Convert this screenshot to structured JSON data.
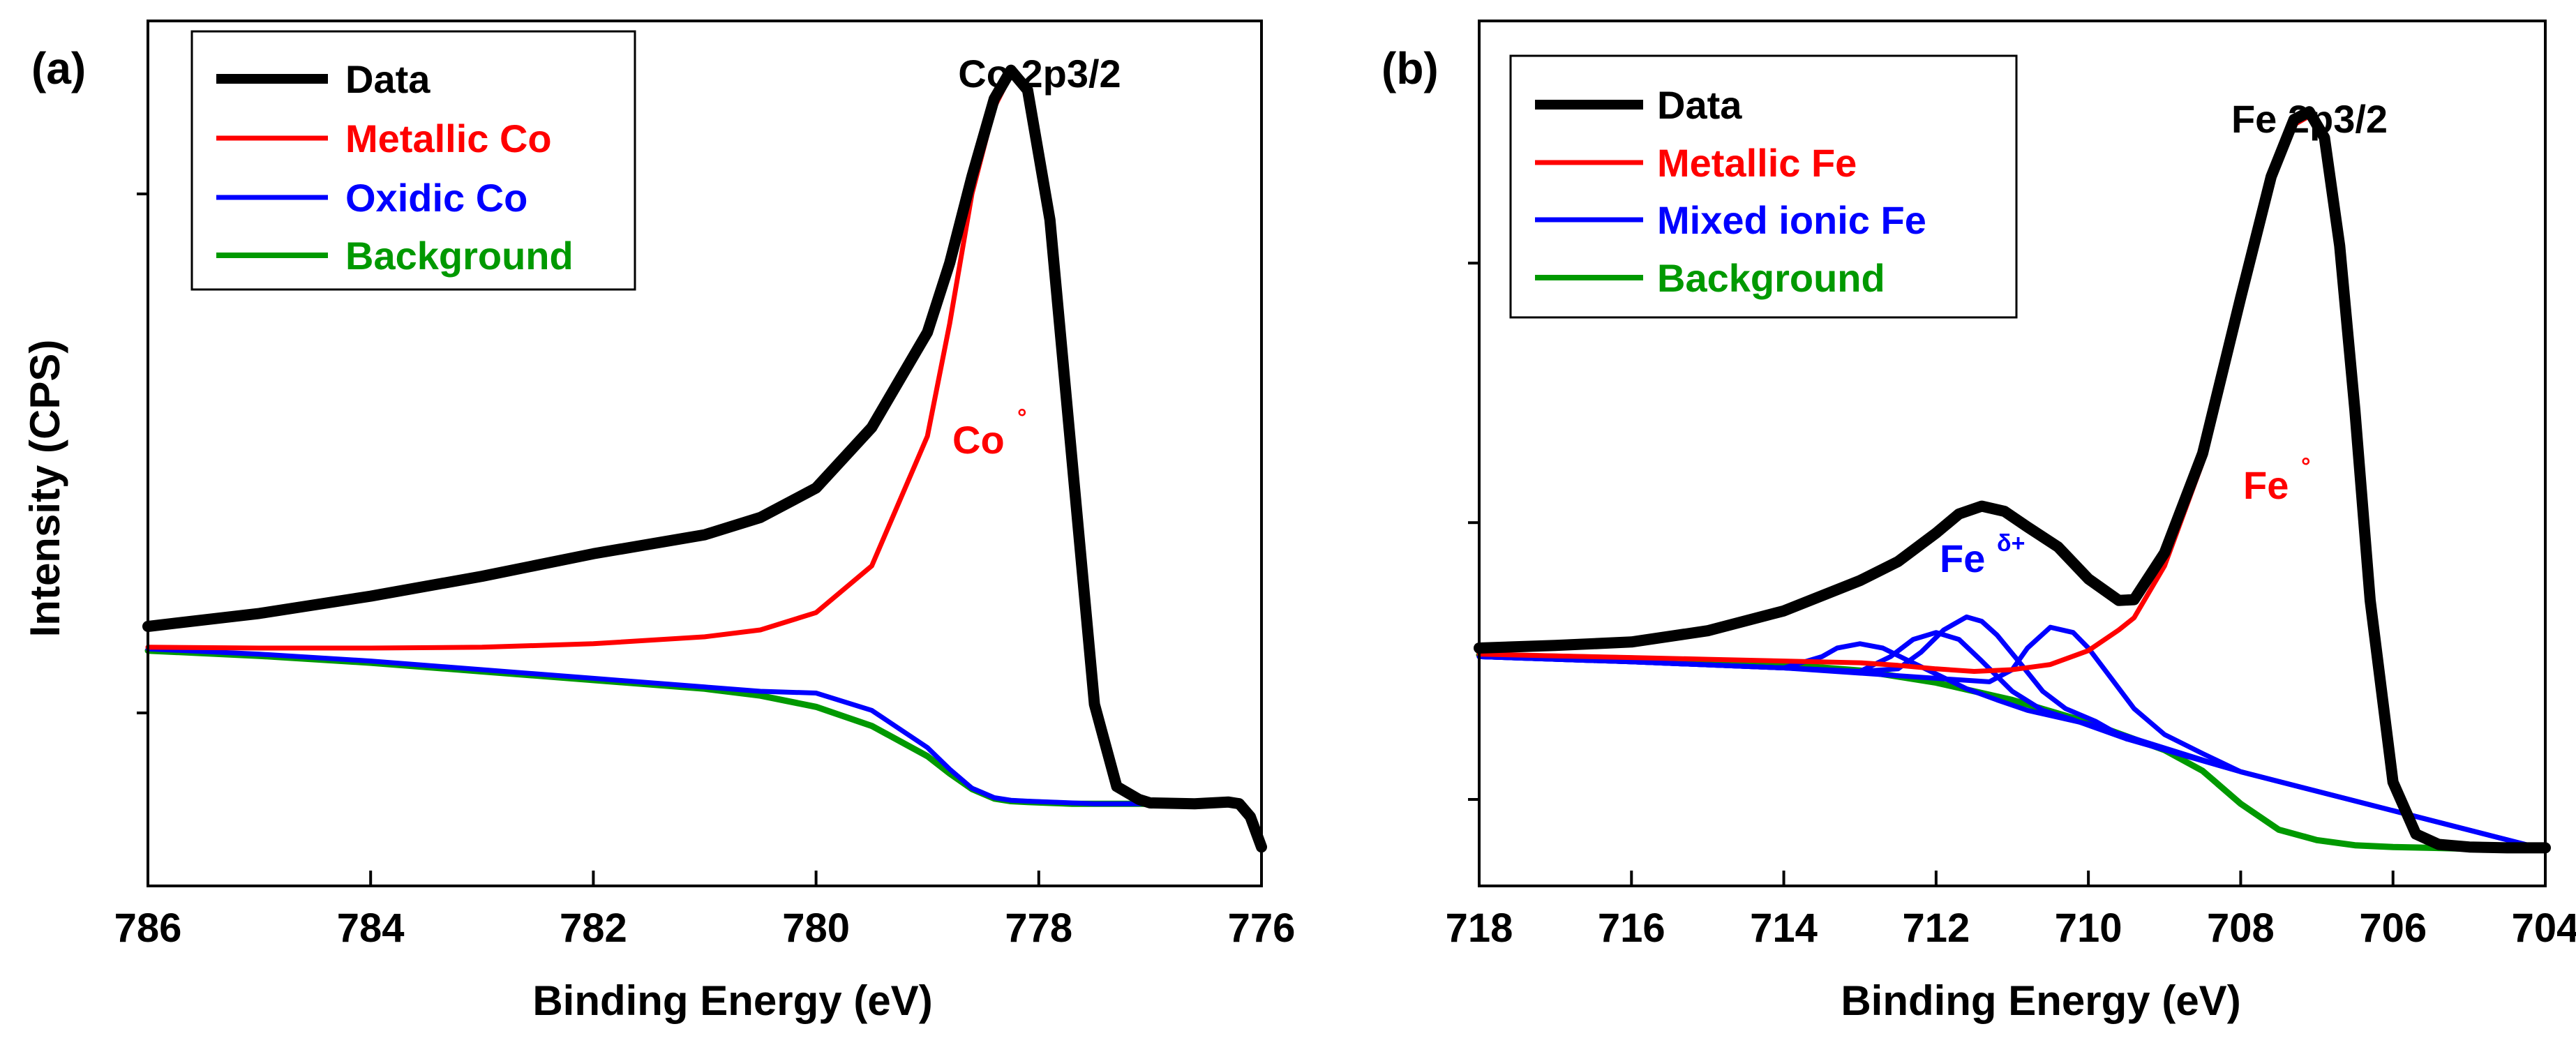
{
  "chart_data": [
    {
      "type": "line",
      "panel_label": "(a)",
      "peak_title": "Co 2p3/2",
      "xlabel": "Binding Energy (eV)",
      "ylabel": "Intensity (CPS)",
      "xlim": [
        786,
        776
      ],
      "ylim": [
        0,
        100
      ],
      "x_ticks": [
        786,
        784,
        782,
        780,
        778,
        776
      ],
      "y_ticks_unlabeled": [
        20,
        80
      ],
      "legend_position": "top-left",
      "annotation": {
        "text": "Co",
        "superscript": "°",
        "color": "#ff0000",
        "at": [
          778.6,
          52
        ]
      },
      "series": [
        {
          "name": "Data",
          "color": "#000000",
          "width": 16,
          "x": [
            786,
            785,
            784,
            783,
            782,
            781,
            780.5,
            780,
            779.5,
            779,
            778.8,
            778.6,
            778.4,
            778.25,
            778.1,
            777.9,
            777.7,
            777.5,
            777.3,
            777.1,
            777,
            776.6,
            776.3,
            776.2,
            776.1,
            776
          ],
          "y": [
            30,
            31.5,
            33.5,
            35.8,
            38.4,
            40.6,
            42.6,
            46,
            53,
            64,
            72,
            82,
            91,
            94.3,
            92,
            77,
            49,
            21,
            11.5,
            10,
            9.6,
            9.5,
            9.7,
            9.5,
            8,
            4.5
          ]
        },
        {
          "name": "Metallic Co",
          "color": "#ff0000",
          "width": 7,
          "x": [
            786,
            785,
            784,
            783,
            782,
            781,
            780.5,
            780,
            779.5,
            779,
            778.8,
            778.6,
            778.4,
            778.25,
            778.1,
            777.9,
            777.7,
            777.5,
            777.3,
            777.1,
            777,
            776.6,
            776.3,
            776.2,
            776.1,
            776
          ],
          "y": [
            27.6,
            27.5,
            27.5,
            27.6,
            28,
            28.8,
            29.6,
            31.6,
            37,
            52,
            65,
            80,
            90,
            93.8,
            91.5,
            76.5,
            48.5,
            20.7,
            11.3,
            9.9,
            9.5,
            9.4,
            9.6,
            9.4,
            7.9,
            4.4
          ]
        },
        {
          "name": "Oxidic Co",
          "color": "#0000ff",
          "width": 7,
          "x": [
            786,
            785,
            784,
            783,
            782,
            781,
            780.5,
            780,
            779.5,
            779,
            778.8,
            778.6,
            778.4,
            778.25,
            778.1,
            777.9,
            777.7,
            777.5,
            777.3,
            777.1,
            777,
            776.6,
            776.3,
            776.2,
            776.1,
            776
          ],
          "y": [
            27.4,
            26.8,
            26,
            25,
            24,
            23,
            22.5,
            22.3,
            20.3,
            16,
            13.5,
            11.3,
            10.2,
            9.9,
            9.8,
            9.7,
            9.6,
            9.5,
            9.5,
            9.5,
            9.5,
            9.4,
            9.6,
            9.4,
            7.9,
            4.4
          ]
        },
        {
          "name": "Background",
          "color": "#009900",
          "width": 9,
          "x": [
            786,
            785,
            784,
            783,
            782,
            781,
            780.5,
            780,
            779.5,
            779,
            778.8,
            778.6,
            778.4,
            778.25,
            778.1,
            777.9,
            777.7,
            777.5,
            777.3,
            777.1,
            777,
            776.6,
            776.3,
            776.2,
            776.1,
            776
          ],
          "y": [
            27.2,
            26.6,
            25.8,
            24.8,
            23.8,
            22.8,
            22,
            20.7,
            18.5,
            15,
            13,
            11.2,
            10.1,
            9.8,
            9.7,
            9.6,
            9.5,
            9.5,
            9.5,
            9.5,
            9.5,
            9.4,
            9.6,
            9.4,
            7.9,
            4.4
          ]
        }
      ]
    },
    {
      "type": "line",
      "panel_label": "(b)",
      "peak_title": "Fe 2p3/2",
      "xlabel": "Binding Energy (eV)",
      "ylabel": "",
      "xlim": [
        718,
        704
      ],
      "ylim": [
        0,
        100
      ],
      "x_ticks": [
        718,
        716,
        714,
        712,
        710,
        708,
        706,
        704
      ],
      "y_ticks_unlabeled": [
        10,
        42,
        72
      ],
      "legend_position": "top-left",
      "annotation": {
        "text": "Fe",
        "superscript": "δ+",
        "color": "#0000ff",
        "at": [
          711.9,
          36
        ]
      },
      "annotation2": {
        "text": "Fe",
        "superscript": "°",
        "color": "#ff0000",
        "at": [
          706.6,
          46
        ]
      },
      "series": [
        {
          "name": "Data",
          "color": "#000000",
          "width": 16,
          "x": [
            718,
            717,
            716,
            715,
            714,
            713,
            712.5,
            712,
            711.7,
            711.4,
            711.1,
            710.8,
            710.4,
            710,
            709.6,
            709.4,
            709,
            708.5,
            708,
            707.6,
            707.3,
            707.1,
            706.9,
            706.7,
            706.5,
            706.3,
            706,
            705.7,
            705.4,
            705,
            704.5,
            704
          ],
          "y": [
            27.5,
            27.8,
            28.2,
            29.5,
            31.8,
            35.3,
            37.5,
            40.8,
            43,
            43.9,
            43.3,
            41.5,
            39.2,
            35.5,
            33,
            33.1,
            38.5,
            50,
            68,
            82,
            88.6,
            89.5,
            86.5,
            74,
            55,
            33,
            12,
            6,
            4.8,
            4.5,
            4.4,
            4.4
          ]
        },
        {
          "name": "Metallic Fe",
          "color": "#ff0000",
          "width": 7,
          "x": [
            718,
            717,
            716,
            715,
            714,
            713,
            712.5,
            712,
            711.5,
            711,
            710.5,
            710,
            709.6,
            709.4,
            709,
            708.5,
            708,
            707.6,
            707.3,
            707.1,
            706.9,
            706.7,
            706.5,
            706.3,
            706,
            705.7,
            705.4,
            705,
            704.5,
            704
          ],
          "y": [
            26.8,
            26.6,
            26.4,
            26.2,
            26,
            25.8,
            25.5,
            25.1,
            24.8,
            25,
            25.6,
            27.2,
            29.6,
            31,
            37,
            49,
            67.3,
            81.4,
            88,
            89,
            86,
            73.6,
            54.6,
            32.6,
            11.6,
            5.7,
            4.6,
            4.3,
            4.2,
            4.2
          ]
        },
        {
          "name": "Mixed ionic Fe 1",
          "color": "#0000ff",
          "width": 7,
          "x": [
            718,
            716,
            714,
            713.5,
            713.3,
            713,
            712.7,
            712.4,
            712,
            711.6,
            711.2,
            710.8,
            710,
            708,
            704
          ],
          "y": [
            26.5,
            25.9,
            25.2,
            26.5,
            27.5,
            28,
            27.5,
            26.2,
            24.5,
            22.8,
            21.5,
            20.3,
            18.7,
            13.2,
            4.2
          ]
        },
        {
          "name": "Mixed ionic Fe 2",
          "color": "#0000ff",
          "width": 7,
          "x": [
            718,
            716,
            714,
            713,
            712.6,
            712.3,
            712,
            711.7,
            711.4,
            711,
            710.6,
            710.2,
            709.5,
            708,
            704
          ],
          "y": [
            26.5,
            25.9,
            25.2,
            24.8,
            26.5,
            28.5,
            29.3,
            28.5,
            26,
            22.5,
            20.3,
            19.2,
            17,
            13.2,
            4.2
          ]
        },
        {
          "name": "Mixed ionic Fe 3",
          "color": "#0000ff",
          "width": 7,
          "x": [
            718,
            716,
            714,
            713,
            712.5,
            712.2,
            711.9,
            711.6,
            711.4,
            711.2,
            710.9,
            710.6,
            710.3,
            709.9,
            709.5,
            708,
            704
          ],
          "y": [
            26.5,
            25.9,
            25.2,
            24.8,
            25.1,
            27,
            29.6,
            31.1,
            30.6,
            29,
            25.8,
            22.5,
            20.5,
            19,
            17,
            13.2,
            4.2
          ]
        },
        {
          "name": "Mixed ionic Fe 4",
          "color": "#0000ff",
          "width": 7,
          "x": [
            718,
            716,
            714,
            712,
            711.3,
            711,
            710.8,
            710.5,
            710.2,
            710,
            709.7,
            709.4,
            709,
            708.5,
            708,
            704
          ],
          "y": [
            26.5,
            25.9,
            25.2,
            24,
            23.6,
            25,
            27.5,
            29.9,
            29.3,
            27.5,
            24,
            20.5,
            17.5,
            15.3,
            13.2,
            4.2
          ]
        },
        {
          "name": "Background",
          "color": "#009900",
          "width": 9,
          "x": [
            718,
            717,
            716,
            715,
            714,
            713,
            712,
            711,
            710,
            709,
            708.5,
            708,
            707.5,
            707,
            706.5,
            706,
            705.5,
            705,
            704.5,
            704
          ],
          "y": [
            26.7,
            26.5,
            26.3,
            26,
            25.6,
            24.9,
            23.5,
            21.5,
            18.9,
            15.7,
            13.3,
            9.5,
            6.5,
            5.3,
            4.7,
            4.5,
            4.4,
            4.3,
            4.2,
            4.2
          ]
        }
      ]
    }
  ],
  "legends": [
    {
      "items": [
        {
          "label": "Data",
          "color": "#000000"
        },
        {
          "label": "Metallic Co",
          "color": "#ff0000"
        },
        {
          "label": "Oxidic Co",
          "color": "#0000ff"
        },
        {
          "label": "Background",
          "color": "#009900"
        }
      ]
    },
    {
      "items": [
        {
          "label": "Data",
          "color": "#000000"
        },
        {
          "label": "Metallic Fe",
          "color": "#ff0000"
        },
        {
          "label": "Mixed ionic Fe",
          "color": "#0000ff"
        },
        {
          "label": "Background",
          "color": "#009900"
        }
      ]
    }
  ]
}
